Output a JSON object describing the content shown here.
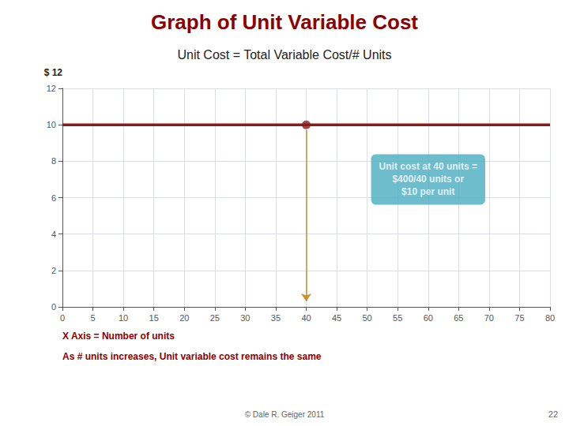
{
  "chart_data": {
    "type": "line",
    "title": "Graph of Unit Variable Cost",
    "title_color": "#8B0000",
    "subtitle": "Unit Cost = Total Variable Cost/# Units",
    "ylabel": "$ 12",
    "xlabel": "X Axis = Number of units",
    "xlabel_note": "As # units increases, Unit variable cost remains the same",
    "xlabel_color": "#8B0000",
    "x": [
      0,
      80
    ],
    "values": [
      10,
      10
    ],
    "color": "#8B1A1A",
    "xlim": [
      0,
      80
    ],
    "ylim": [
      0,
      12
    ],
    "xticks": [
      0,
      5,
      10,
      15,
      20,
      25,
      30,
      35,
      40,
      45,
      50,
      55,
      60,
      65,
      70,
      75,
      80
    ],
    "yticks": [
      0,
      2,
      4,
      6,
      8,
      10,
      12
    ],
    "grid": true,
    "points": [
      {
        "x": 40,
        "y": 10,
        "color": "#8B1A1A",
        "marker": "circle"
      }
    ],
    "arrows": [
      {
        "x": 40,
        "y_from": 9.7,
        "y_to": 0.3,
        "color": "#C8922A"
      }
    ],
    "annotations": [
      {
        "text": "Unit cost at 40 units =\n$400/40 units or\n$10 per unit",
        "x": 60,
        "y": 7,
        "color": "#FFFFFF",
        "background": "#4AACBF"
      }
    ],
    "footnote": "© Dale R. Geiger 2011",
    "page_number": "22"
  }
}
